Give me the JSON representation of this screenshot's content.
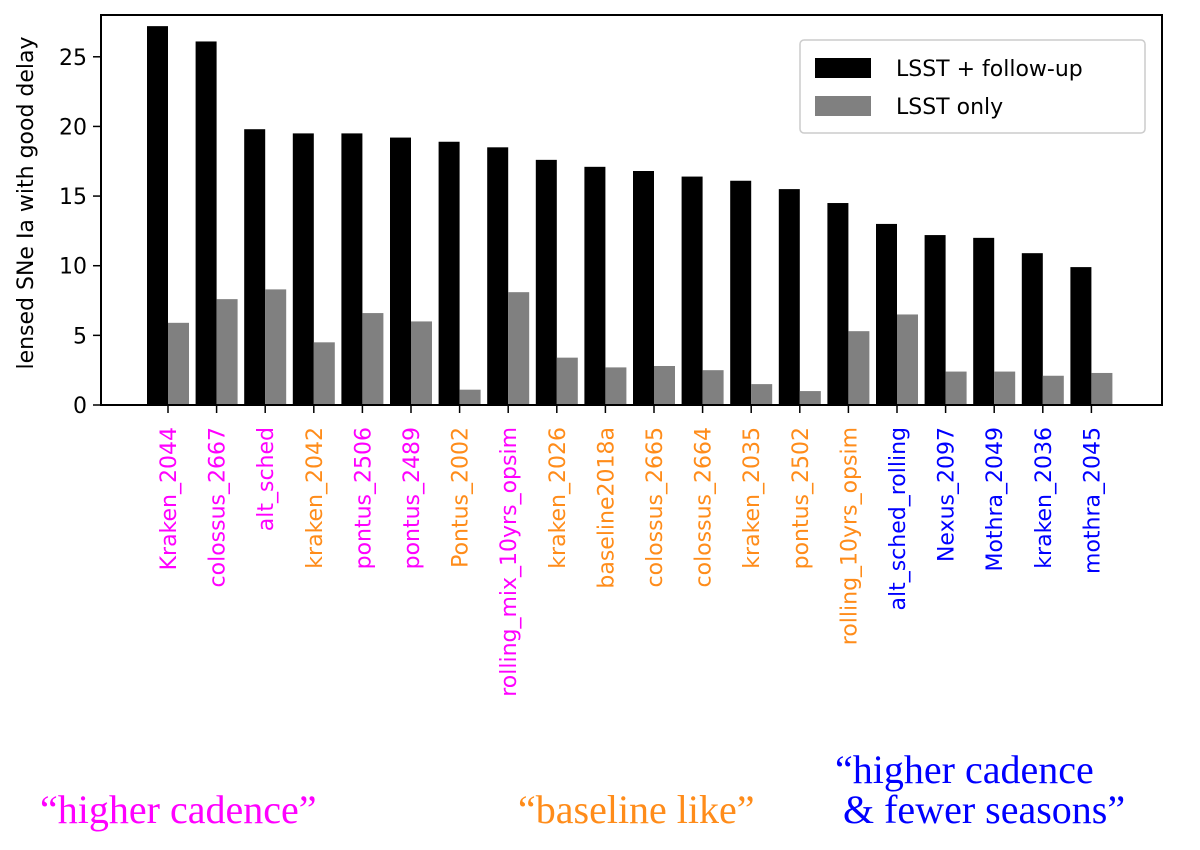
{
  "chart_data": {
    "type": "bar",
    "title": "",
    "xlabel": "",
    "ylabel": "lensed SNe Ia with good delay",
    "ylim": [
      0,
      28
    ],
    "yticks": [
      0,
      5,
      10,
      15,
      20,
      25
    ],
    "grid": false,
    "legend_position": "top-right",
    "categories": [
      "Kraken_2044",
      "colossus_2667",
      "alt_sched",
      "kraken_2042",
      "pontus_2506",
      "pontus_2489",
      "Pontus_2002",
      "rolling_mix_10yrs_opsim",
      "kraken_2026",
      "baseline2018a",
      "colossus_2665",
      "colossus_2664",
      "kraken_2035",
      "pontus_2502",
      "rolling_10yrs_opsim",
      "alt_sched_rolling",
      "Nexus_2097",
      "Mothra_2049",
      "kraken_2036",
      "mothra_2045"
    ],
    "category_groups": [
      "higher",
      "higher",
      "higher",
      "baseline",
      "higher",
      "higher",
      "baseline",
      "higher",
      "baseline",
      "baseline",
      "baseline",
      "baseline",
      "baseline",
      "baseline",
      "baseline",
      "fewer",
      "fewer",
      "fewer",
      "fewer",
      "fewer"
    ],
    "series": [
      {
        "name": "LSST + follow-up",
        "color": "#000000",
        "values": [
          27.2,
          26.1,
          19.8,
          19.5,
          19.5,
          19.2,
          18.9,
          18.5,
          17.6,
          17.1,
          16.8,
          16.4,
          16.1,
          15.5,
          14.5,
          13.0,
          12.2,
          12.0,
          10.9,
          9.9
        ]
      },
      {
        "name": "LSST only",
        "color": "#808080",
        "values": [
          5.9,
          7.6,
          8.3,
          4.5,
          6.6,
          6.0,
          1.1,
          8.1,
          3.4,
          2.7,
          2.8,
          2.5,
          1.5,
          1.0,
          5.3,
          6.5,
          2.4,
          2.4,
          2.1,
          2.3
        ]
      }
    ]
  },
  "groups": {
    "higher": {
      "color": "#ff00ff",
      "label": "“higher cadence”"
    },
    "baseline": {
      "color": "#ff8c1a",
      "label": "“baseline like”"
    },
    "fewer": {
      "color": "#0000ff",
      "label_line1": "“higher cadence",
      "label_line2": "& fewer seasons”"
    }
  }
}
